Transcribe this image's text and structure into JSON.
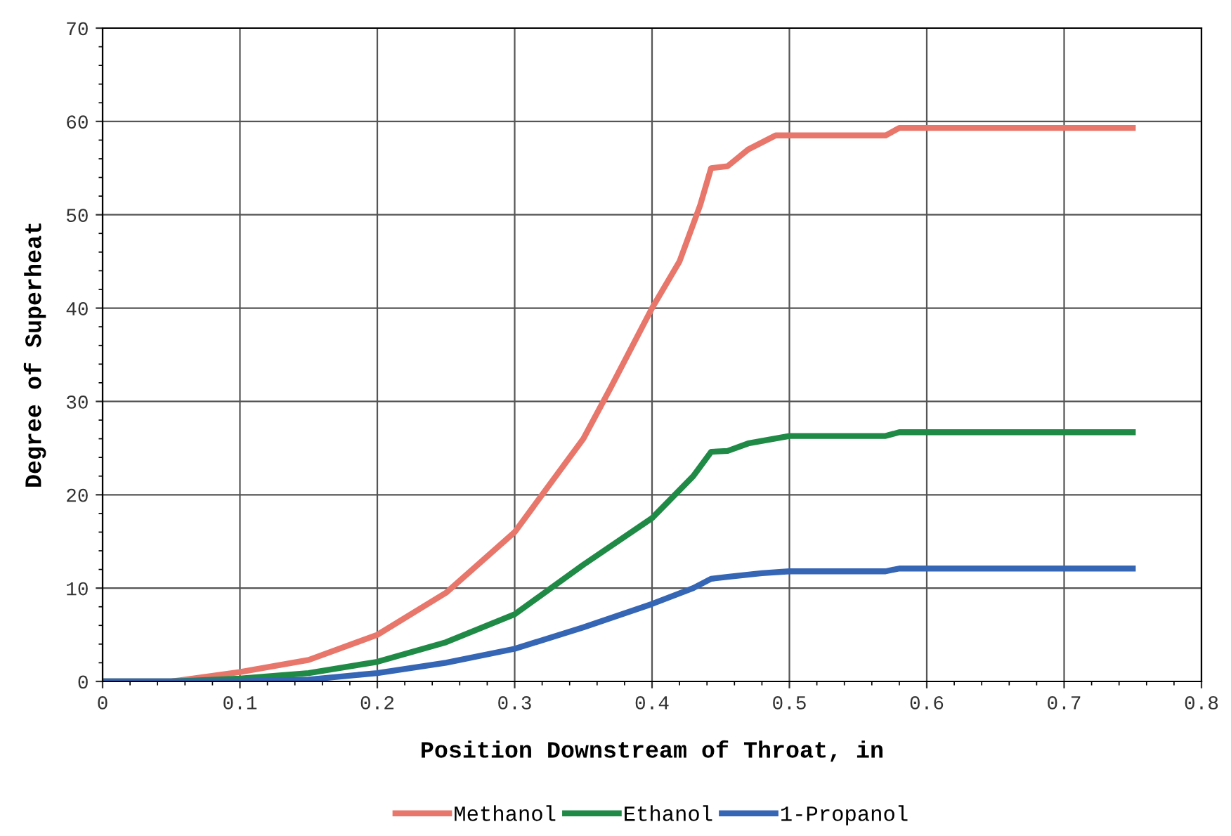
{
  "chart_data": {
    "type": "line",
    "xlabel": "Position Downstream of Throat, in",
    "ylabel": "Degree of Superheat",
    "xlim": [
      0,
      0.8
    ],
    "xticks": [
      0,
      0.1,
      0.2,
      0.3,
      0.4,
      0.5,
      0.6,
      0.7,
      0.8
    ],
    "ylim": [
      0,
      70
    ],
    "yticks": [
      0,
      10,
      20,
      30,
      40,
      50,
      60,
      70
    ],
    "grid": true,
    "legend": "bottom",
    "line_style": "solid",
    "series": [
      {
        "name": "Methanol",
        "color": "#e8766a",
        "x": [
          0,
          0.05,
          0.1,
          0.15,
          0.2,
          0.25,
          0.3,
          0.35,
          0.37,
          0.4,
          0.42,
          0.435,
          0.443,
          0.455,
          0.47,
          0.49,
          0.57,
          0.58,
          0.75
        ],
        "values": [
          0,
          0,
          1,
          2.3,
          5,
          9.5,
          16,
          26,
          31.5,
          40,
          45,
          51,
          55,
          55.2,
          57,
          58.5,
          58.5,
          59.3,
          59.3
        ]
      },
      {
        "name": "Ethanol",
        "color": "#1f8a45",
        "x": [
          0,
          0.05,
          0.1,
          0.15,
          0.2,
          0.25,
          0.3,
          0.35,
          0.4,
          0.43,
          0.443,
          0.455,
          0.47,
          0.5,
          0.57,
          0.58,
          0.75
        ],
        "values": [
          0,
          0,
          0.3,
          0.9,
          2.1,
          4.2,
          7.2,
          12.5,
          17.5,
          22,
          24.6,
          24.7,
          25.5,
          26.3,
          26.3,
          26.7,
          26.7
        ]
      },
      {
        "name": "1-Propanol",
        "color": "#3565b5",
        "x": [
          0,
          0.1,
          0.15,
          0.2,
          0.25,
          0.3,
          0.35,
          0.4,
          0.43,
          0.443,
          0.455,
          0.48,
          0.5,
          0.57,
          0.58,
          0.75
        ],
        "values": [
          0,
          0,
          0.2,
          0.9,
          2,
          3.5,
          5.8,
          8.3,
          10,
          11,
          11.2,
          11.6,
          11.8,
          11.8,
          12.1,
          12.1
        ]
      }
    ]
  }
}
